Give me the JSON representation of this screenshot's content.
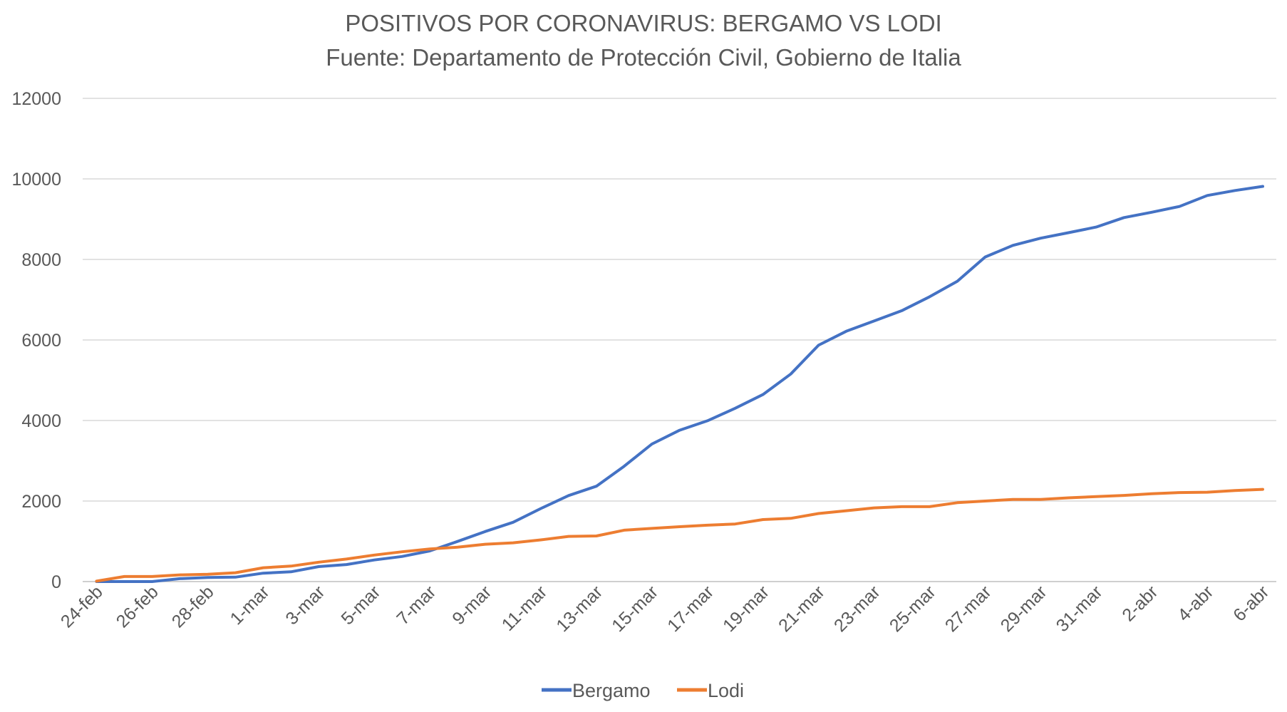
{
  "chart_data": {
    "type": "line",
    "title": "POSITIVOS POR CORONAVIRUS: BERGAMO VS LODI",
    "subtitle": "Fuente: Departamento de Protección Civil, Gobierno de Italia",
    "xlabel": "",
    "ylabel": "",
    "ylim": [
      0,
      12000
    ],
    "yticks": [
      "0",
      "2000",
      "4000",
      "6000",
      "8000",
      "10000",
      "12000"
    ],
    "grid": true,
    "legend_position": "bottom",
    "x": [
      "24-feb",
      "25-feb",
      "26-feb",
      "27-feb",
      "28-feb",
      "29-feb",
      "1-mar",
      "2-mar",
      "3-mar",
      "4-mar",
      "5-mar",
      "6-mar",
      "7-mar",
      "8-mar",
      "9-mar",
      "10-mar",
      "11-mar",
      "12-mar",
      "13-mar",
      "14-mar",
      "15-mar",
      "16-mar",
      "17-mar",
      "18-mar",
      "19-mar",
      "20-mar",
      "21-mar",
      "22-mar",
      "23-mar",
      "24-mar",
      "25-mar",
      "26-mar",
      "27-mar",
      "28-mar",
      "29-mar",
      "30-mar",
      "31-mar",
      "1-abr",
      "2-abr",
      "3-abr",
      "4-abr",
      "5-abr",
      "6-abr"
    ],
    "xtick_labels": [
      "24-feb",
      "26-feb",
      "28-feb",
      "1-mar",
      "3-mar",
      "5-mar",
      "7-mar",
      "9-mar",
      "11-mar",
      "13-mar",
      "15-mar",
      "17-mar",
      "19-mar",
      "21-mar",
      "23-mar",
      "25-mar",
      "27-mar",
      "29-mar",
      "31-mar",
      "2-abr",
      "4-abr",
      "6-abr"
    ],
    "series": [
      {
        "name": "Bergamo",
        "color": "#4472C4",
        "values": [
          0,
          0,
          0,
          72,
          103,
          110,
          209,
          243,
          372,
          423,
          537,
          623,
          761,
          997,
          1245,
          1472,
          1815,
          2136,
          2368,
          2864,
          3416,
          3760,
          3993,
          4305,
          4645,
          5154,
          5869,
          6216,
          6471,
          6728,
          7072,
          7458,
          8060,
          8349,
          8527,
          8664,
          8803,
          9039,
          9171,
          9315,
          9588,
          9712,
          9815
        ]
      },
      {
        "name": "Lodi",
        "color": "#ED7D31",
        "values": [
          10,
          125,
          125,
          166,
          182,
          220,
          344,
          384,
          482,
          559,
          658,
          739,
          811,
          853,
          928,
          963,
          1035,
          1123,
          1133,
          1276,
          1320,
          1362,
          1400,
          1430,
          1540,
          1570,
          1690,
          1760,
          1830,
          1860,
          1860,
          1960,
          2000,
          2040,
          2040,
          2080,
          2110,
          2140,
          2180,
          2210,
          2220,
          2260,
          2290
        ]
      }
    ]
  }
}
